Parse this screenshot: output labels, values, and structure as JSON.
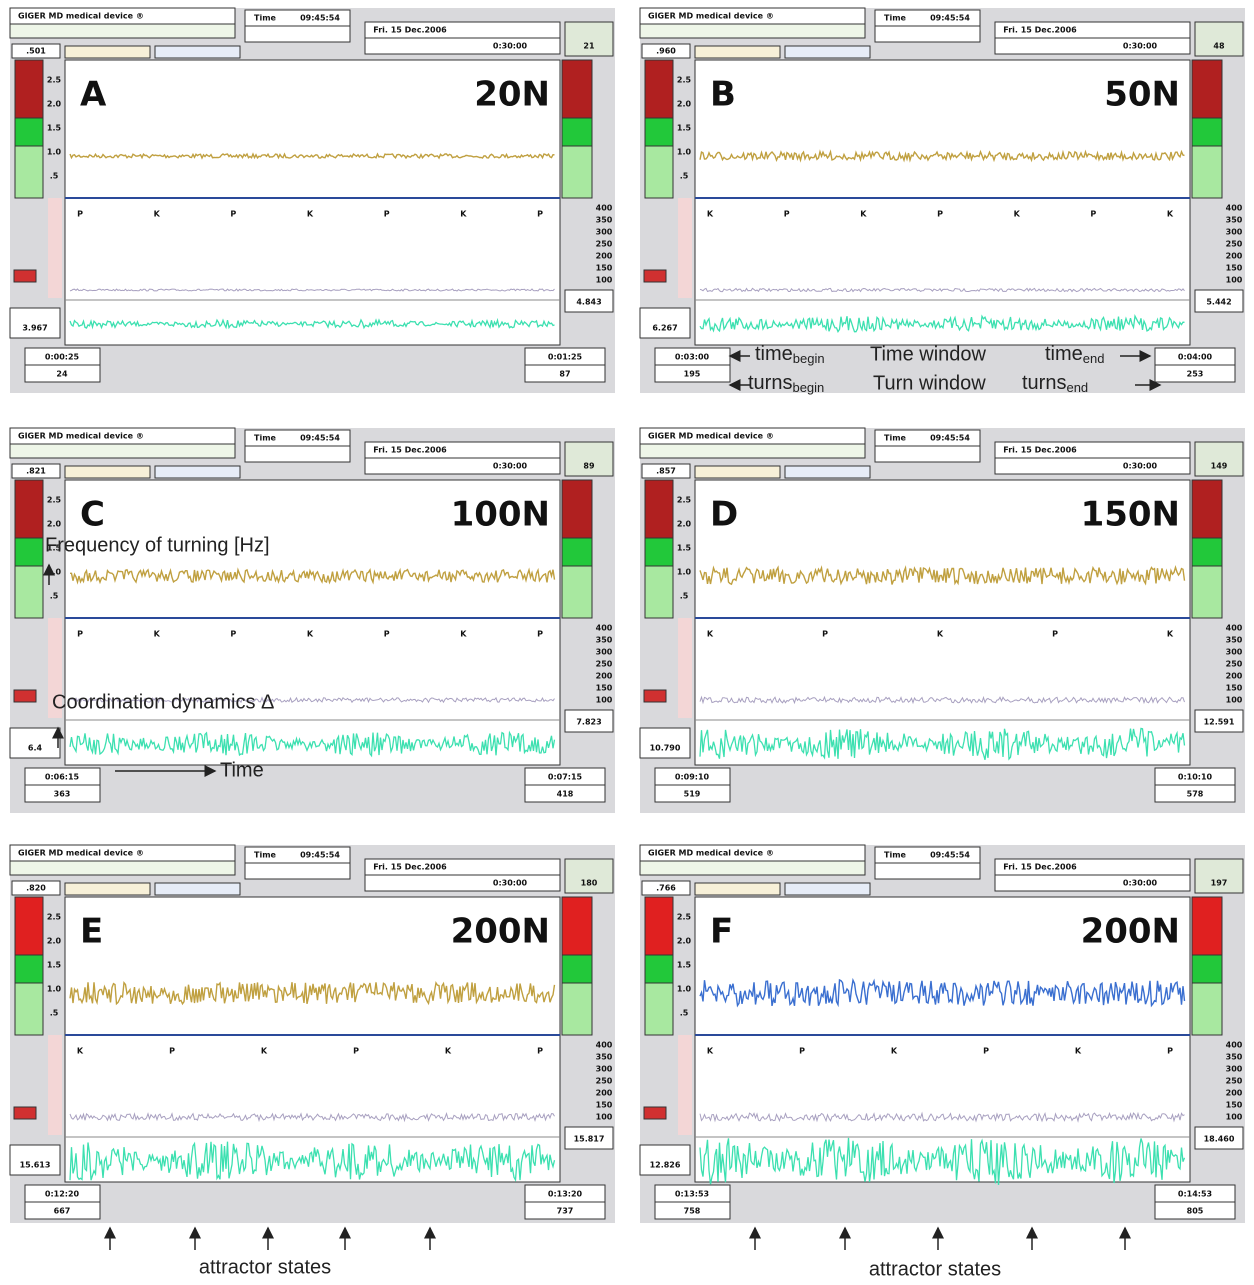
{
  "header": {
    "device": "GIGER MD medical device ®",
    "time_label": "Time",
    "clock": "09:45:54",
    "date": "Fri. 15 Dec.2006",
    "duration": "0:30:00",
    "left_ticks": [
      "2.5",
      "2.0",
      "1.5",
      "1.0",
      ".5"
    ],
    "right_ticks": [
      "400",
      "350",
      "300",
      "250",
      "200",
      "150",
      "100"
    ]
  },
  "panels": [
    {
      "letter": "A",
      "force": "20N",
      "ratio": ".501",
      "counter": "21",
      "markers": [
        "P",
        "K",
        "P",
        "K",
        "P",
        "K",
        "P"
      ],
      "left_value": "3.967",
      "right_value": "4.843",
      "time_begin": "0:00:25",
      "time_end": "0:01:25",
      "turns_begin": "24",
      "turns_end": "87"
    },
    {
      "letter": "B",
      "force": "50N",
      "ratio": ".960",
      "counter": "48",
      "markers": [
        "K",
        "P",
        "K",
        "P",
        "K",
        "P",
        "K"
      ],
      "left_value": "6.267",
      "right_value": "5.442",
      "time_begin": "0:03:00",
      "time_end": "0:04:00",
      "turns_begin": "195",
      "turns_end": "253"
    },
    {
      "letter": "C",
      "force": "100N",
      "ratio": ".821",
      "counter": "89",
      "markers": [
        "P",
        "K",
        "P",
        "K",
        "P",
        "K",
        "P"
      ],
      "left_value": "6.4",
      "right_value": "7.823",
      "time_begin": "0:06:15",
      "time_end": "0:07:15",
      "turns_begin": "363",
      "turns_end": "418"
    },
    {
      "letter": "D",
      "force": "150N",
      "ratio": ".857",
      "counter": "149",
      "markers": [
        "K",
        "P",
        "K",
        "P",
        "K"
      ],
      "left_value": "10.790",
      "right_value": "12.591",
      "time_begin": "0:09:10",
      "time_end": "0:10:10",
      "turns_begin": "519",
      "turns_end": "578"
    },
    {
      "letter": "E",
      "force": "200N",
      "ratio": ".820",
      "counter": "180",
      "markers": [
        "K",
        "P",
        "K",
        "P",
        "K",
        "P"
      ],
      "left_value": "15.613",
      "right_value": "15.817",
      "time_begin": "0:12:20",
      "time_end": "0:13:20",
      "turns_begin": "667",
      "turns_end": "737"
    },
    {
      "letter": "F",
      "force": "200N",
      "ratio": ".766",
      "counter": "197",
      "markers": [
        "K",
        "P",
        "K",
        "P",
        "K",
        "P"
      ],
      "left_value": "12.826",
      "right_value": "18.460",
      "time_begin": "0:13:53",
      "time_end": "0:14:53",
      "turns_begin": "758",
      "turns_end": "805"
    }
  ],
  "annotations": {
    "time_begin": {
      "main": "time",
      "sub": "begin"
    },
    "time_window": "Time window",
    "time_end": {
      "main": "time",
      "sub": "end"
    },
    "turns_begin": {
      "main": "turns",
      "sub": "begin"
    },
    "turn_window": "Turn window",
    "turns_end": {
      "main": "turns",
      "sub": "end"
    },
    "frequency": "Frequency of turning [Hz]",
    "coordination": "Coordination dynamics Δ",
    "time": "Time",
    "attractor_states": "attractor states"
  }
}
